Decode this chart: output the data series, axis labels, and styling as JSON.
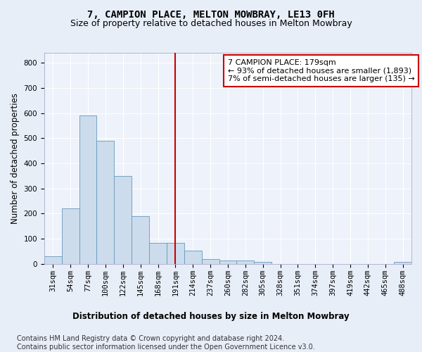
{
  "title": "7, CAMPION PLACE, MELTON MOWBRAY, LE13 0FH",
  "subtitle": "Size of property relative to detached houses in Melton Mowbray",
  "xlabel": "Distribution of detached houses by size in Melton Mowbray",
  "ylabel": "Number of detached properties",
  "bar_labels": [
    "31sqm",
    "54sqm",
    "77sqm",
    "100sqm",
    "122sqm",
    "145sqm",
    "168sqm",
    "191sqm",
    "214sqm",
    "237sqm",
    "260sqm",
    "282sqm",
    "305sqm",
    "328sqm",
    "351sqm",
    "374sqm",
    "397sqm",
    "419sqm",
    "442sqm",
    "465sqm",
    "488sqm"
  ],
  "bar_values": [
    30,
    220,
    590,
    490,
    350,
    190,
    85,
    85,
    52,
    20,
    15,
    15,
    9,
    0,
    0,
    0,
    0,
    0,
    0,
    0,
    9
  ],
  "bar_color": "#ccdcec",
  "bar_edge_color": "#6699bb",
  "vline_x": 7.0,
  "vline_color": "#cc0000",
  "ylim": [
    0,
    840
  ],
  "yticks": [
    0,
    100,
    200,
    300,
    400,
    500,
    600,
    700,
    800
  ],
  "annotation_line1": "7 CAMPION PLACE: 179sqm",
  "annotation_line2": "← 93% of detached houses are smaller (1,893)",
  "annotation_line3": "7% of semi-detached houses are larger (135) →",
  "footer_line1": "Contains HM Land Registry data © Crown copyright and database right 2024.",
  "footer_line2": "Contains public sector information licensed under the Open Government Licence v3.0.",
  "bg_color": "#e8eef8",
  "plot_bg_color": "#eef2fa",
  "grid_color": "#ffffff",
  "title_fontsize": 10,
  "subtitle_fontsize": 9,
  "ylabel_fontsize": 8.5,
  "tick_fontsize": 7.5,
  "annotation_fontsize": 8,
  "footer_fontsize": 7
}
